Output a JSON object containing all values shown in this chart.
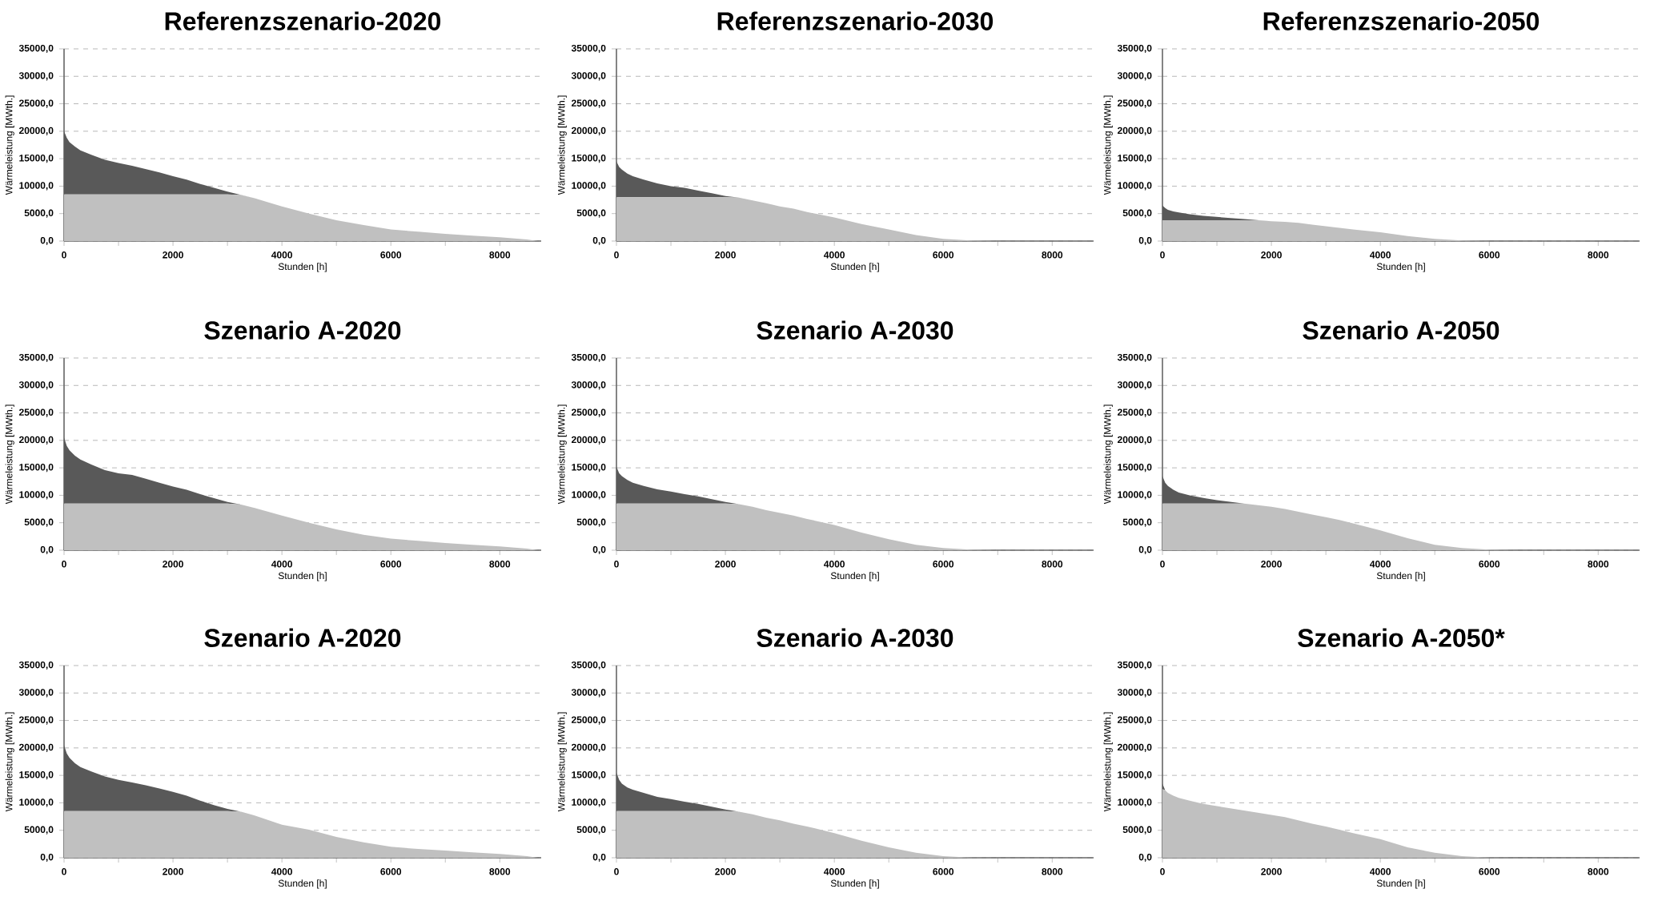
{
  "chart_data": [
    {
      "type": "area",
      "stacked": true,
      "grid": "y",
      "title": "Referenzszenario-2020",
      "xlabel": "Stunden [h]",
      "ylabel": "Wärmeleistung [MWth.]",
      "x": [
        0,
        50,
        100,
        200,
        300,
        500,
        750,
        1000,
        1250,
        1500,
        1750,
        2000,
        2250,
        2500,
        2750,
        3000,
        3250,
        3500,
        4000,
        4500,
        5000,
        5500,
        6000,
        6500,
        7000,
        7500,
        8000,
        8500,
        8700
      ],
      "series": [
        {
          "color": "#c0c0c0",
          "values": [
            8500,
            8500,
            8500,
            8500,
            8500,
            8500,
            8500,
            8500,
            8500,
            8500,
            8500,
            8500,
            8500,
            8500,
            8500,
            8500,
            8400,
            7800,
            6300,
            5000,
            3800,
            2900,
            2100,
            1700,
            1300,
            1000,
            700,
            300,
            0
          ]
        },
        {
          "color": "#595959",
          "values": [
            11500,
            10300,
            9500,
            8700,
            8000,
            7200,
            6300,
            5700,
            5200,
            4600,
            4000,
            3300,
            2700,
            1900,
            1200,
            500,
            0,
            0,
            0,
            0,
            0,
            0,
            0,
            0,
            0,
            0,
            0,
            0,
            0
          ]
        }
      ],
      "xlim": [
        0,
        8760
      ],
      "ylim": [
        0,
        35000
      ],
      "xticks": [
        0,
        {
          "value": 1000,
          "label": null
        },
        2000,
        {
          "value": 3000,
          "label": null
        },
        4000,
        {
          "value": 5000,
          "label": null
        },
        6000,
        {
          "value": 7000,
          "label": null
        },
        8000
      ],
      "yticks": [
        {
          "value": 0,
          "label": "0,0"
        },
        {
          "value": 5000,
          "label": "5000,0"
        },
        {
          "value": 10000,
          "label": "10000,0"
        },
        {
          "value": 15000,
          "label": "15000,0"
        },
        {
          "value": 20000,
          "label": "20000,0"
        },
        {
          "value": 25000,
          "label": "25000,0"
        },
        {
          "value": 30000,
          "label": "30000,0"
        },
        {
          "value": 35000,
          "label": "35000,0"
        }
      ]
    },
    {
      "type": "area",
      "stacked": true,
      "grid": "y",
      "title": "Referenzszenario-2030",
      "xlabel": "Stunden [h]",
      "ylabel": "Wärmeleistung [MWth.]",
      "x": [
        0,
        50,
        100,
        200,
        300,
        500,
        750,
        1000,
        1250,
        1500,
        1750,
        2000,
        2250,
        2500,
        2750,
        3000,
        3250,
        3500,
        4000,
        4500,
        5000,
        5500,
        6000,
        6500,
        7000,
        7500,
        8000,
        8500,
        8700
      ],
      "series": [
        {
          "color": "#c0c0c0",
          "values": [
            8000,
            8000,
            8000,
            8000,
            8000,
            8000,
            8000,
            8000,
            8000,
            8000,
            8000,
            8000,
            7900,
            7400,
            6900,
            6300,
            5900,
            5300,
            4300,
            3100,
            2100,
            1100,
            400,
            100,
            0,
            0,
            0,
            0,
            0
          ]
        },
        {
          "color": "#595959",
          "values": [
            6500,
            5500,
            5000,
            4300,
            3800,
            3200,
            2500,
            2000,
            1700,
            1200,
            700,
            200,
            0,
            0,
            0,
            0,
            0,
            0,
            0,
            0,
            0,
            0,
            0,
            0,
            0,
            0,
            0,
            0,
            0
          ]
        }
      ],
      "xlim": [
        0,
        8760
      ],
      "ylim": [
        0,
        35000
      ],
      "xticks": [
        0,
        {
          "value": 1000,
          "label": null
        },
        2000,
        {
          "value": 3000,
          "label": null
        },
        4000,
        {
          "value": 5000,
          "label": null
        },
        6000,
        {
          "value": 7000,
          "label": null
        },
        8000
      ],
      "yticks": [
        {
          "value": 0,
          "label": "0,0"
        },
        {
          "value": 5000,
          "label": "5000,0"
        },
        {
          "value": 10000,
          "label": "10000,0"
        },
        {
          "value": 15000,
          "label": "15000,0"
        },
        {
          "value": 20000,
          "label": "20000,0"
        },
        {
          "value": 25000,
          "label": "25000,0"
        },
        {
          "value": 30000,
          "label": "30000,0"
        },
        {
          "value": 35000,
          "label": "35000,0"
        }
      ]
    },
    {
      "type": "area",
      "stacked": true,
      "grid": "y",
      "title": "Referenzszenario-2050",
      "xlabel": "Stunden [h]",
      "ylabel": "Wärmeleistung [MWth.]",
      "x": [
        0,
        50,
        100,
        200,
        300,
        500,
        750,
        1000,
        1250,
        1500,
        1750,
        2000,
        2250,
        2500,
        2750,
        3000,
        3250,
        3500,
        4000,
        4500,
        5000,
        5500,
        6000,
        6500,
        7000,
        7500,
        8000,
        8500,
        8700
      ],
      "series": [
        {
          "color": "#c0c0c0",
          "values": [
            3800,
            3800,
            3800,
            3800,
            3800,
            3800,
            3800,
            3800,
            3800,
            3800,
            3800,
            3600,
            3500,
            3300,
            3000,
            2700,
            2400,
            2100,
            1600,
            900,
            400,
            100,
            0,
            0,
            0,
            0,
            0,
            0,
            0
          ]
        },
        {
          "color": "#595959",
          "values": [
            2700,
            2200,
            1900,
            1600,
            1400,
            1100,
            800,
            600,
            400,
            200,
            0,
            0,
            0,
            0,
            0,
            0,
            0,
            0,
            0,
            0,
            0,
            0,
            0,
            0,
            0,
            0,
            0,
            0,
            0
          ]
        }
      ],
      "xlim": [
        0,
        8760
      ],
      "ylim": [
        0,
        35000
      ],
      "xticks": [
        0,
        {
          "value": 1000,
          "label": null
        },
        2000,
        {
          "value": 3000,
          "label": null
        },
        4000,
        {
          "value": 5000,
          "label": null
        },
        6000,
        {
          "value": 7000,
          "label": null
        },
        8000
      ],
      "yticks": [
        {
          "value": 0,
          "label": "0,0"
        },
        {
          "value": 5000,
          "label": "5000,0"
        },
        {
          "value": 10000,
          "label": "10000,0"
        },
        {
          "value": 15000,
          "label": "15000,0"
        },
        {
          "value": 20000,
          "label": "20000,0"
        },
        {
          "value": 25000,
          "label": "25000,0"
        },
        {
          "value": 30000,
          "label": "30000,0"
        },
        {
          "value": 35000,
          "label": "35000,0"
        }
      ]
    },
    {
      "type": "area",
      "stacked": true,
      "grid": "y",
      "title": "Szenario A-2020",
      "xlabel": "Stunden [h]",
      "ylabel": "Wärmeleistung [MWth.]",
      "x": [
        0,
        50,
        100,
        200,
        300,
        500,
        750,
        1000,
        1250,
        1500,
        1750,
        2000,
        2250,
        2500,
        2750,
        3000,
        3250,
        3500,
        4000,
        4500,
        5000,
        5500,
        6000,
        6500,
        7000,
        7500,
        8000,
        8500,
        8700
      ],
      "series": [
        {
          "color": "#c0c0c0",
          "values": [
            8500,
            8500,
            8500,
            8500,
            8500,
            8500,
            8500,
            8500,
            8500,
            8500,
            8500,
            8500,
            8500,
            8500,
            8500,
            8500,
            8300,
            7700,
            6300,
            5000,
            3800,
            2800,
            2100,
            1700,
            1300,
            1000,
            700,
            300,
            0
          ]
        },
        {
          "color": "#595959",
          "values": [
            12000,
            10500,
            9700,
            8700,
            8000,
            7100,
            6100,
            5500,
            5200,
            4500,
            3800,
            3100,
            2500,
            1700,
            1000,
            300,
            0,
            0,
            0,
            0,
            0,
            0,
            0,
            0,
            0,
            0,
            0,
            0,
            0
          ]
        }
      ],
      "xlim": [
        0,
        8760
      ],
      "ylim": [
        0,
        35000
      ],
      "xticks": [
        0,
        {
          "value": 1000,
          "label": null
        },
        2000,
        {
          "value": 3000,
          "label": null
        },
        4000,
        {
          "value": 5000,
          "label": null
        },
        6000,
        {
          "value": 7000,
          "label": null
        },
        8000
      ],
      "yticks": [
        {
          "value": 0,
          "label": "0,0"
        },
        {
          "value": 5000,
          "label": "5000,0"
        },
        {
          "value": 10000,
          "label": "10000,0"
        },
        {
          "value": 15000,
          "label": "15000,0"
        },
        {
          "value": 20000,
          "label": "20000,0"
        },
        {
          "value": 25000,
          "label": "25000,0"
        },
        {
          "value": 30000,
          "label": "30000,0"
        },
        {
          "value": 35000,
          "label": "35000,0"
        }
      ]
    },
    {
      "type": "area",
      "stacked": true,
      "grid": "y",
      "title": "Szenario A-2030",
      "xlabel": "Stunden [h]",
      "ylabel": "Wärmeleistung [MWth.]",
      "x": [
        0,
        50,
        100,
        200,
        300,
        500,
        750,
        1000,
        1250,
        1500,
        1750,
        2000,
        2250,
        2500,
        2750,
        3000,
        3250,
        3500,
        4000,
        4500,
        5000,
        5500,
        6000,
        6500,
        7000,
        7500,
        8000,
        8500,
        8700
      ],
      "series": [
        {
          "color": "#c0c0c0",
          "values": [
            8500,
            8500,
            8500,
            8500,
            8500,
            8500,
            8500,
            8500,
            8500,
            8500,
            8500,
            8500,
            8400,
            7900,
            7300,
            6800,
            6300,
            5700,
            4600,
            3200,
            2000,
            1000,
            400,
            100,
            0,
            0,
            0,
            0,
            0
          ]
        },
        {
          "color": "#595959",
          "values": [
            6700,
            5500,
            5000,
            4300,
            3800,
            3200,
            2600,
            2200,
            1700,
            1300,
            800,
            300,
            0,
            0,
            0,
            0,
            0,
            0,
            0,
            0,
            0,
            0,
            0,
            0,
            0,
            0,
            0,
            0,
            0
          ]
        }
      ],
      "xlim": [
        0,
        8760
      ],
      "ylim": [
        0,
        35000
      ],
      "xticks": [
        0,
        {
          "value": 1000,
          "label": null
        },
        2000,
        {
          "value": 3000,
          "label": null
        },
        4000,
        {
          "value": 5000,
          "label": null
        },
        6000,
        {
          "value": 7000,
          "label": null
        },
        8000
      ],
      "yticks": [
        {
          "value": 0,
          "label": "0,0"
        },
        {
          "value": 5000,
          "label": "5000,0"
        },
        {
          "value": 10000,
          "label": "10000,0"
        },
        {
          "value": 15000,
          "label": "15000,0"
        },
        {
          "value": 20000,
          "label": "20000,0"
        },
        {
          "value": 25000,
          "label": "25000,0"
        },
        {
          "value": 30000,
          "label": "30000,0"
        },
        {
          "value": 35000,
          "label": "35000,0"
        }
      ]
    },
    {
      "type": "area",
      "stacked": true,
      "grid": "y",
      "title": "Szenario A-2050",
      "xlabel": "Stunden [h]",
      "ylabel": "Wärmeleistung [MWth.]",
      "x": [
        0,
        50,
        100,
        200,
        300,
        500,
        750,
        1000,
        1250,
        1500,
        1750,
        2000,
        2250,
        2500,
        2750,
        3000,
        3250,
        3500,
        4000,
        4500,
        5000,
        5500,
        6000,
        6500,
        7000,
        7500,
        8000,
        8500,
        8700
      ],
      "series": [
        {
          "color": "#c0c0c0",
          "values": [
            8500,
            8500,
            8500,
            8500,
            8500,
            8500,
            8500,
            8500,
            8500,
            8500,
            8200,
            7900,
            7500,
            7000,
            6500,
            6000,
            5500,
            4900,
            3600,
            2200,
            1000,
            400,
            100,
            0,
            0,
            0,
            0,
            0,
            0
          ]
        },
        {
          "color": "#595959",
          "values": [
            5000,
            3800,
            3200,
            2500,
            2000,
            1500,
            1000,
            600,
            300,
            0,
            0,
            0,
            0,
            0,
            0,
            0,
            0,
            0,
            0,
            0,
            0,
            0,
            0,
            0,
            0,
            0,
            0,
            0,
            0
          ]
        }
      ],
      "xlim": [
        0,
        8760
      ],
      "ylim": [
        0,
        35000
      ],
      "xticks": [
        0,
        {
          "value": 1000,
          "label": null
        },
        2000,
        {
          "value": 3000,
          "label": null
        },
        4000,
        {
          "value": 5000,
          "label": null
        },
        6000,
        {
          "value": 7000,
          "label": null
        },
        8000
      ],
      "yticks": [
        {
          "value": 0,
          "label": "0,0"
        },
        {
          "value": 5000,
          "label": "5000,0"
        },
        {
          "value": 10000,
          "label": "10000,0"
        },
        {
          "value": 15000,
          "label": "15000,0"
        },
        {
          "value": 20000,
          "label": "20000,0"
        },
        {
          "value": 25000,
          "label": "25000,0"
        },
        {
          "value": 30000,
          "label": "30000,0"
        },
        {
          "value": 35000,
          "label": "35000,0"
        }
      ]
    },
    {
      "type": "area",
      "stacked": true,
      "grid": "y",
      "title": "Szenario A-2020",
      "xlabel": "Stunden [h]",
      "ylabel": "Wärmeleistung [MWth.]",
      "x": [
        0,
        50,
        100,
        200,
        300,
        500,
        750,
        1000,
        1250,
        1500,
        1750,
        2000,
        2250,
        2500,
        2750,
        3000,
        3250,
        3500,
        4000,
        4500,
        5000,
        5500,
        6000,
        6500,
        7000,
        7500,
        8000,
        8500,
        8700
      ],
      "series": [
        {
          "color": "#c0c0c0",
          "values": [
            8500,
            8500,
            8500,
            8500,
            8500,
            8500,
            8500,
            8500,
            8500,
            8500,
            8500,
            8500,
            8500,
            8500,
            8500,
            8500,
            8400,
            7700,
            6000,
            5100,
            3800,
            2800,
            2000,
            1600,
            1300,
            1000,
            700,
            300,
            0
          ]
        },
        {
          "color": "#595959",
          "values": [
            12000,
            10500,
            9700,
            8700,
            8000,
            7200,
            6300,
            5700,
            5200,
            4700,
            4100,
            3500,
            2800,
            1900,
            1100,
            400,
            0,
            0,
            0,
            0,
            0,
            0,
            0,
            0,
            0,
            0,
            0,
            0,
            0
          ]
        }
      ],
      "xlim": [
        0,
        8760
      ],
      "ylim": [
        0,
        35000
      ],
      "xticks": [
        0,
        {
          "value": 1000,
          "label": null
        },
        2000,
        {
          "value": 3000,
          "label": null
        },
        4000,
        {
          "value": 5000,
          "label": null
        },
        6000,
        {
          "value": 7000,
          "label": null
        },
        8000
      ],
      "yticks": [
        {
          "value": 0,
          "label": "0,0"
        },
        {
          "value": 5000,
          "label": "5000,0"
        },
        {
          "value": 10000,
          "label": "10000,0"
        },
        {
          "value": 15000,
          "label": "15000,0"
        },
        {
          "value": 20000,
          "label": "20000,0"
        },
        {
          "value": 25000,
          "label": "25000,0"
        },
        {
          "value": 30000,
          "label": "30000,0"
        },
        {
          "value": 35000,
          "label": "35000,0"
        }
      ]
    },
    {
      "type": "area",
      "stacked": true,
      "grid": "y",
      "title": "Szenario A-2030",
      "xlabel": "Stunden [h]",
      "ylabel": "Wärmeleistung [MWth.]",
      "x": [
        0,
        50,
        100,
        200,
        300,
        500,
        750,
        1000,
        1250,
        1500,
        1750,
        2000,
        2250,
        2500,
        2750,
        3000,
        3250,
        3500,
        4000,
        4500,
        5000,
        5500,
        6000,
        6500,
        7000,
        7500,
        8000,
        8500,
        8700
      ],
      "series": [
        {
          "color": "#c0c0c0",
          "values": [
            8500,
            8500,
            8500,
            8500,
            8500,
            8500,
            8500,
            8500,
            8500,
            8500,
            8500,
            8500,
            8400,
            7900,
            7300,
            6800,
            6200,
            5700,
            4500,
            3100,
            1900,
            900,
            300,
            50,
            0,
            0,
            0,
            0,
            0
          ]
        },
        {
          "color": "#595959",
          "values": [
            7000,
            5700,
            5000,
            4300,
            3900,
            3300,
            2600,
            2200,
            1700,
            1300,
            800,
            300,
            0,
            0,
            0,
            0,
            0,
            0,
            0,
            0,
            0,
            0,
            0,
            0,
            0,
            0,
            0,
            0,
            0
          ]
        }
      ],
      "xlim": [
        0,
        8760
      ],
      "ylim": [
        0,
        35000
      ],
      "xticks": [
        0,
        {
          "value": 1000,
          "label": null
        },
        2000,
        {
          "value": 3000,
          "label": null
        },
        4000,
        {
          "value": 5000,
          "label": null
        },
        6000,
        {
          "value": 7000,
          "label": null
        },
        8000
      ],
      "yticks": [
        {
          "value": 0,
          "label": "0,0"
        },
        {
          "value": 5000,
          "label": "5000,0"
        },
        {
          "value": 10000,
          "label": "10000,0"
        },
        {
          "value": 15000,
          "label": "15000,0"
        },
        {
          "value": 20000,
          "label": "20000,0"
        },
        {
          "value": 25000,
          "label": "25000,0"
        },
        {
          "value": 30000,
          "label": "30000,0"
        },
        {
          "value": 35000,
          "label": "35000,0"
        }
      ]
    },
    {
      "type": "area",
      "stacked": true,
      "grid": "y",
      "title": "Szenario A-2050*",
      "xlabel": "Stunden [h]",
      "ylabel": "Wärmeleistung [MWth.]",
      "x": [
        0,
        50,
        100,
        200,
        300,
        500,
        750,
        1000,
        1250,
        1500,
        1750,
        2000,
        2250,
        2500,
        2750,
        3000,
        3250,
        3500,
        4000,
        4500,
        5000,
        5500,
        6000,
        6500,
        7000,
        7500,
        8000,
        8500,
        8700
      ],
      "series": [
        {
          "color": "#c0c0c0",
          "values": [
            12500,
            12300,
            11800,
            11300,
            10900,
            10400,
            9800,
            9400,
            9000,
            8600,
            8200,
            7800,
            7400,
            6800,
            6200,
            5700,
            5100,
            4500,
            3400,
            1900,
            900,
            300,
            50,
            0,
            0,
            0,
            0,
            0,
            0
          ]
        },
        {
          "color": "#595959",
          "values": [
            1000,
            0,
            0,
            0,
            0,
            0,
            0,
            0,
            0,
            0,
            0,
            0,
            0,
            0,
            0,
            0,
            0,
            0,
            0,
            0,
            0,
            0,
            0,
            0,
            0,
            0,
            0,
            0,
            0
          ]
        }
      ],
      "xlim": [
        0,
        8760
      ],
      "ylim": [
        0,
        35000
      ],
      "xticks": [
        0,
        {
          "value": 1000,
          "label": null
        },
        2000,
        {
          "value": 3000,
          "label": null
        },
        4000,
        {
          "value": 5000,
          "label": null
        },
        6000,
        {
          "value": 7000,
          "label": null
        },
        8000
      ],
      "yticks": [
        {
          "value": 0,
          "label": "0,0"
        },
        {
          "value": 5000,
          "label": "5000,0"
        },
        {
          "value": 10000,
          "label": "10000,0"
        },
        {
          "value": 15000,
          "label": "15000,0"
        },
        {
          "value": 20000,
          "label": "20000,0"
        },
        {
          "value": 25000,
          "label": "25000,0"
        },
        {
          "value": 30000,
          "label": "30000,0"
        },
        {
          "value": 35000,
          "label": "35000,0"
        }
      ]
    }
  ]
}
